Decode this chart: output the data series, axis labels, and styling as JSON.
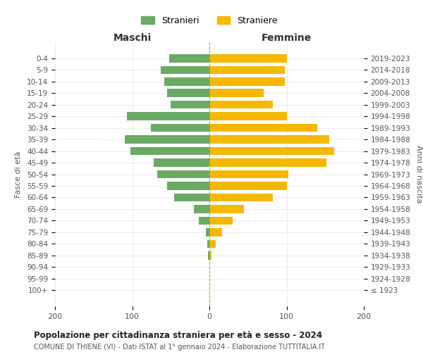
{
  "age_groups": [
    "100+",
    "95-99",
    "90-94",
    "85-89",
    "80-84",
    "75-79",
    "70-74",
    "65-69",
    "60-64",
    "55-59",
    "50-54",
    "45-49",
    "40-44",
    "35-39",
    "30-34",
    "25-29",
    "20-24",
    "15-19",
    "10-14",
    "5-9",
    "0-4"
  ],
  "birth_years": [
    "≤ 1923",
    "1924-1928",
    "1929-1933",
    "1934-1938",
    "1939-1943",
    "1944-1948",
    "1949-1953",
    "1954-1958",
    "1959-1963",
    "1964-1968",
    "1969-1973",
    "1974-1978",
    "1979-1983",
    "1984-1988",
    "1989-1993",
    "1994-1998",
    "1999-2003",
    "2004-2008",
    "2009-2013",
    "2014-2018",
    "2019-2023"
  ],
  "maschi": [
    0,
    0,
    0,
    2,
    3,
    5,
    14,
    20,
    46,
    55,
    68,
    72,
    102,
    110,
    76,
    107,
    50,
    55,
    58,
    63,
    52
  ],
  "femmine": [
    0,
    0,
    0,
    3,
    8,
    16,
    30,
    45,
    82,
    100,
    102,
    152,
    162,
    155,
    140,
    100,
    82,
    70,
    98,
    98,
    100
  ],
  "male_color": "#6aaa64",
  "female_color": "#f5b800",
  "male_label": "Stranieri",
  "female_label": "Straniere",
  "title": "Popolazione per cittadinanza straniera per età e sesso - 2024",
  "subtitle": "COMUNE DI THIENE (VI) - Dati ISTAT al 1° gennaio 2024 - Elaborazione TUTTITALIA.IT",
  "xlabel_left": "Maschi",
  "xlabel_right": "Femmine",
  "ylabel_left": "Fasce di età",
  "ylabel_right": "Anni di nascita",
  "xlim": 200,
  "bg_color": "#ffffff",
  "grid_color": "#cccccc"
}
